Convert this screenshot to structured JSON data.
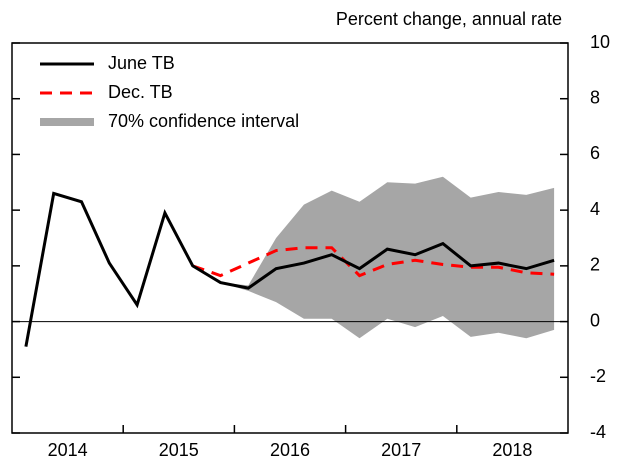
{
  "chart_data": {
    "type": "line",
    "axis_label": "Percent change, annual rate",
    "x": [
      2014.125,
      2014.375,
      2014.625,
      2014.875,
      2015.125,
      2015.375,
      2015.625,
      2015.875,
      2016.125,
      2016.375,
      2016.625,
      2016.875,
      2017.125,
      2017.375,
      2017.625,
      2017.875,
      2018.125,
      2018.375,
      2018.625,
      2018.875
    ],
    "series": [
      {
        "name": "June TB",
        "color": "#000000",
        "dashed": false,
        "values": [
          -0.9,
          4.6,
          4.3,
          2.1,
          0.6,
          3.9,
          2.0,
          1.4,
          1.2,
          1.9,
          2.1,
          2.4,
          1.9,
          2.6,
          2.4,
          2.8,
          2.0,
          2.1,
          1.9,
          2.2
        ]
      },
      {
        "name": "Dec. TB",
        "color": "#ff0000",
        "dashed": true,
        "values": [
          null,
          null,
          null,
          null,
          null,
          null,
          2.0,
          1.65,
          2.1,
          2.55,
          2.65,
          2.65,
          1.65,
          2.05,
          2.2,
          2.05,
          1.95,
          1.95,
          1.75,
          1.7
        ]
      }
    ],
    "band": {
      "name": "70% confidence interval",
      "color": "#a6a6a6",
      "upper": [
        null,
        null,
        null,
        null,
        null,
        null,
        null,
        1.4,
        1.3,
        3.0,
        4.2,
        4.7,
        4.3,
        5.0,
        4.95,
        5.2,
        4.45,
        4.65,
        4.55,
        4.8
      ],
      "lower": [
        null,
        null,
        null,
        null,
        null,
        null,
        null,
        1.4,
        1.1,
        0.7,
        0.1,
        0.1,
        -0.6,
        0.1,
        -0.2,
        0.2,
        -0.55,
        -0.4,
        -0.6,
        -0.3
      ]
    },
    "xlim": [
      2014,
      2019
    ],
    "xticks": [
      {
        "value": 2014.5,
        "label": "2014"
      },
      {
        "value": 2015.5,
        "label": "2015"
      },
      {
        "value": 2016.5,
        "label": "2016"
      },
      {
        "value": 2017.5,
        "label": "2017"
      },
      {
        "value": 2018.5,
        "label": "2018"
      }
    ],
    "ylim": [
      -4,
      10
    ],
    "yticks": [
      -4,
      -2,
      0,
      2,
      4,
      6,
      8,
      10
    ],
    "legend": "upper left"
  }
}
